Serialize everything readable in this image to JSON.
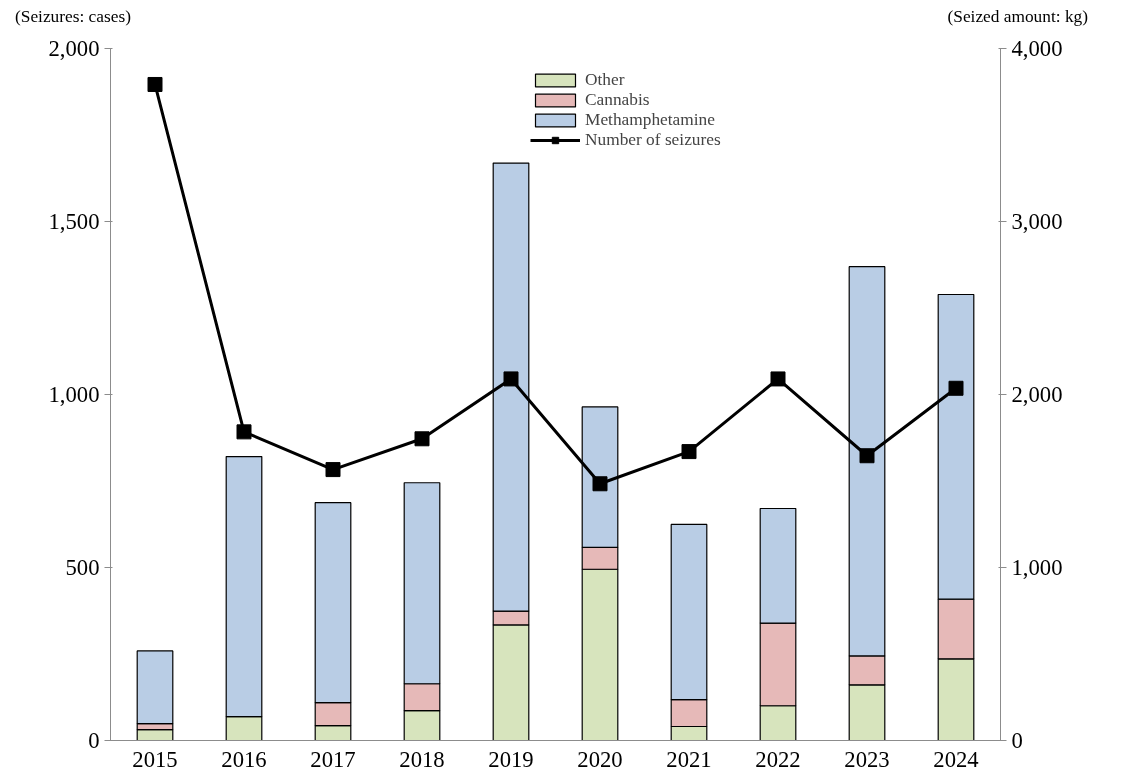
{
  "chart_data": {
    "type": "bar",
    "stacked": true,
    "ylabel": "(Seizures: cases)",
    "y2label": "(Seized amount: kg)",
    "categories": [
      "2015",
      "2016",
      "2017",
      "2018",
      "2019",
      "2020",
      "2021",
      "2022",
      "2023",
      "2024"
    ],
    "series": [
      {
        "name": "Other",
        "axis": "y2",
        "color": "#d7e4bd",
        "values": [
          63,
          138,
          86,
          173,
          668,
          990,
          81,
          201,
          322,
          472
        ]
      },
      {
        "name": "Cannabis",
        "axis": "y2",
        "color": "#e6b9b8",
        "values": [
          35,
          null,
          133,
          155,
          80,
          126,
          155,
          478,
          167,
          345
        ]
      },
      {
        "name": "Methamphetamine",
        "axis": "y2",
        "color": "#b9cde5",
        "values": [
          420,
          1503,
          1156,
          1162,
          2590,
          812,
          1013,
          662,
          2250,
          1761
        ]
      },
      {
        "name": "Number of seizures",
        "type": "line",
        "color": "#000000",
        "marker": "square",
        "values": [
          1896,
          892,
          783,
          872,
          1045,
          742,
          835,
          1045,
          823,
          1018
        ]
      }
    ],
    "ylim": [
      0,
      2000
    ],
    "yticks": [
      {
        "value": 0,
        "label": "0"
      },
      {
        "value": 500,
        "label": "500"
      },
      {
        "value": 1000,
        "label": "1,000"
      },
      {
        "value": 1500,
        "label": "1,500"
      },
      {
        "value": 2000,
        "label": "2,000"
      }
    ],
    "y2lim": [
      0,
      4000
    ],
    "y2ticks": [
      {
        "value": 0,
        "label": "0"
      },
      {
        "value": 1000,
        "label": "1,000"
      },
      {
        "value": 2000,
        "label": "2,000"
      },
      {
        "value": 3000,
        "label": "3,000"
      },
      {
        "value": 4000,
        "label": "4,000"
      }
    ],
    "legend": "top",
    "grid": false
  }
}
